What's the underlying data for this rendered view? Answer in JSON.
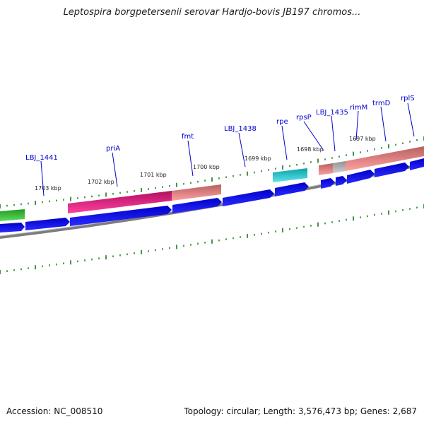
{
  "title": "Leptospira borgpetersenii serovar Hardjo-bovis JB197 chromos...",
  "footer": {
    "accession": "Accession: NC_008510",
    "summary": "Topology: circular; Length: 3,576,473 bp; Genes: 2,687"
  },
  "gene_labels": [
    "LBJ_1441",
    "priA",
    "fmt",
    "LBJ_1438",
    "rpe",
    "rpsP",
    "LBJ_1435",
    "rimM",
    "trmD",
    "rplS"
  ],
  "kbp_labels": [
    "1703 kbp",
    "1702 kbp",
    "1701 kbp",
    "1700 kbp",
    "1699 kbp",
    "1698 kbp",
    "1697 kbp"
  ],
  "colors": {
    "cds": "#0000ee",
    "backbone": "#808080",
    "tick": "#1a7a1a",
    "label_line": "#0000cc",
    "green_feature": "#33bb33",
    "pink_feature": "#ee1188",
    "salmon_feature": "#f08080",
    "cyan_feature": "#22c8d0",
    "gray_feature": "#b4b4b4"
  }
}
